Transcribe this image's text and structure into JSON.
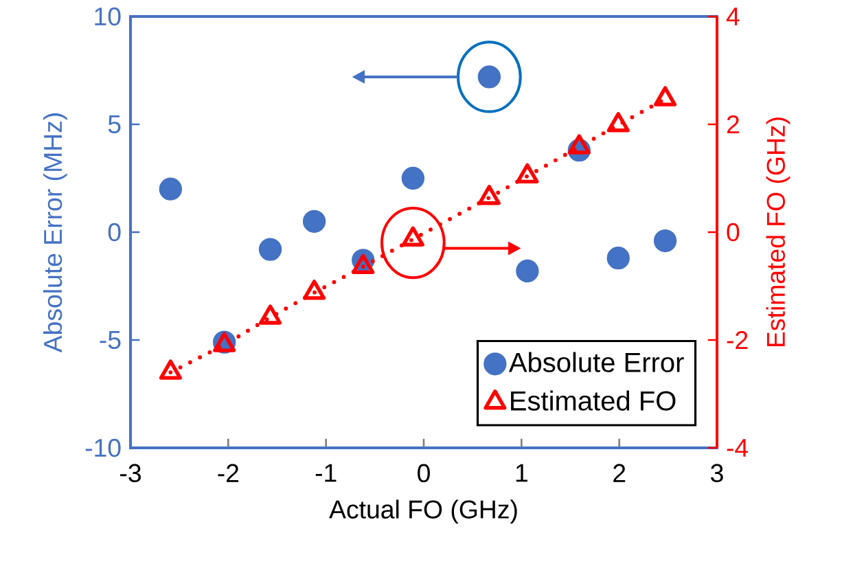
{
  "chart_data": {
    "type": "scatter",
    "xlabel": "Actual FO (GHz)",
    "ylabel": "Absolute Error (MHz)",
    "y2label": "Estimated FO (GHz)",
    "xlim": [
      -3,
      3
    ],
    "xticks": [
      -3,
      -2,
      -1,
      0,
      1,
      2,
      3
    ],
    "ylim": [
      -10,
      10
    ],
    "yticks": [
      -10,
      -5,
      0,
      5,
      10
    ],
    "y2lim": [
      -4,
      4
    ],
    "y2ticks": [
      -4,
      -2,
      0,
      2,
      4
    ],
    "legend": "bottom right",
    "series": [
      {
        "name": "Absolute Error",
        "color": "#4472c4",
        "marker": "circle",
        "x": [
          -2.59,
          -2.04,
          -1.57,
          -1.12,
          -0.62,
          -0.11,
          0.67,
          1.06,
          1.59,
          1.99,
          2.47
        ],
        "values": [
          2.0,
          -5.1,
          -0.8,
          0.5,
          -1.3,
          2.5,
          7.2,
          -1.8,
          3.8,
          -1.2,
          -0.4
        ]
      },
      {
        "name": "Estimated FO",
        "type": "line",
        "axis": "y2",
        "color": "#ff0000",
        "marker": "triangle",
        "line_style": "dotted",
        "x": [
          -2.59,
          -2.04,
          -1.57,
          -1.12,
          -0.62,
          -0.11,
          0.67,
          1.06,
          1.59,
          1.99,
          2.47
        ],
        "values": [
          -2.6,
          -2.09,
          -1.58,
          -1.12,
          -0.64,
          -0.13,
          0.64,
          1.04,
          1.58,
          1.99,
          2.47
        ]
      }
    ]
  }
}
